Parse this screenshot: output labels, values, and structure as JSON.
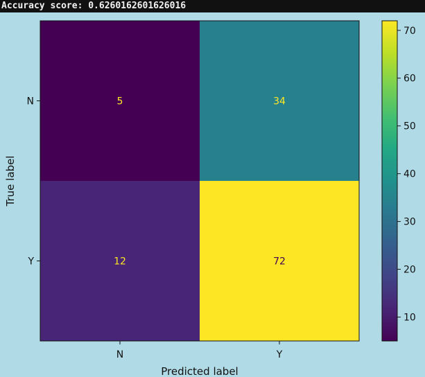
{
  "console": {
    "text": "Accuracy score: 0.6260162601626016"
  },
  "colors": {
    "background": "#b0dbe6",
    "low_text": "#fde725",
    "high_text": "#440154"
  },
  "chart_data": {
    "type": "heatmap",
    "title": "",
    "xlabel": "Predicted label",
    "ylabel": "True label",
    "x_categories": [
      "N",
      "Y"
    ],
    "y_categories": [
      "N",
      "Y"
    ],
    "values": [
      [
        5,
        34
      ],
      [
        12,
        72
      ]
    ],
    "colormap": "viridis",
    "colorbar": {
      "min": 5,
      "max": 72,
      "ticks": [
        10,
        20,
        30,
        40,
        50,
        60,
        70
      ]
    }
  }
}
